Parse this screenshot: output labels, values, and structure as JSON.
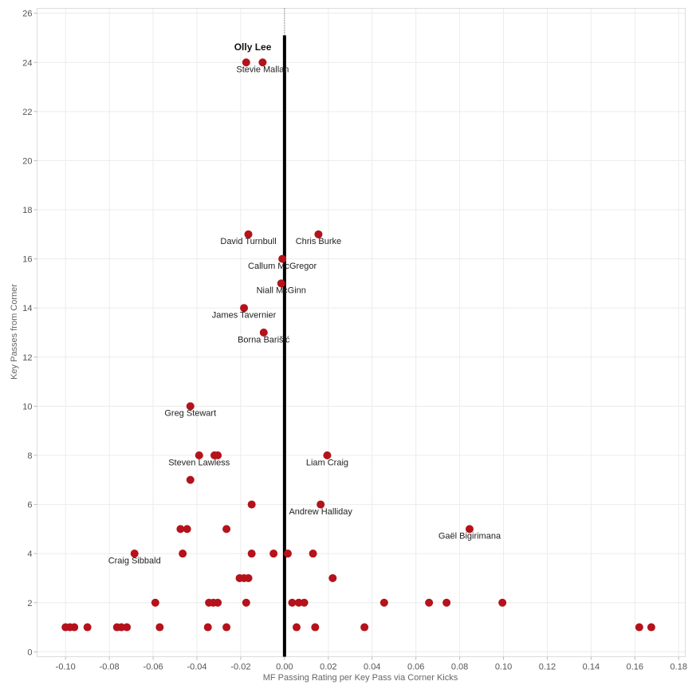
{
  "chart_data": {
    "type": "scatter",
    "title": "",
    "xlabel": "MF Passing Rating per Key Pass via Corner Kicks",
    "ylabel": "Key Passes from Corner",
    "xlim": [
      -0.113,
      0.183
    ],
    "ylim": [
      -0.2,
      26.2
    ],
    "x_ticks": [
      -0.1,
      -0.08,
      -0.06,
      -0.04,
      -0.02,
      0.0,
      0.02,
      0.04,
      0.06,
      0.08,
      0.1,
      0.12,
      0.14,
      0.16,
      0.18
    ],
    "x_tick_labels": [
      "-0.10",
      "-0.08",
      "-0.06",
      "-0.04",
      "-0.02",
      "0.00",
      "0.02",
      "0.04",
      "0.06",
      "0.08",
      "0.10",
      "0.12",
      "0.14",
      "0.16",
      "0.18"
    ],
    "y_ticks": [
      0,
      2,
      4,
      6,
      8,
      10,
      12,
      14,
      16,
      18,
      20,
      22,
      24,
      26
    ],
    "y_tick_labels": [
      "0",
      "2",
      "4",
      "6",
      "8",
      "10",
      "12",
      "14",
      "16",
      "18",
      "20",
      "22",
      "24",
      "26"
    ],
    "grid": true,
    "marker_color": "#b5121b",
    "reference_line": {
      "x": 0.0,
      "y_to": 25.1,
      "color": "#000000"
    },
    "points": [
      {
        "x": -0.0175,
        "y": 24
      },
      {
        "x": -0.01,
        "y": 24
      },
      {
        "x": -0.0165,
        "y": 17
      },
      {
        "x": 0.0155,
        "y": 17
      },
      {
        "x": -0.001,
        "y": 16
      },
      {
        "x": -0.0015,
        "y": 15
      },
      {
        "x": -0.0185,
        "y": 14
      },
      {
        "x": -0.0095,
        "y": 13
      },
      {
        "x": -0.043,
        "y": 10
      },
      {
        "x": -0.039,
        "y": 8
      },
      {
        "x": -0.032,
        "y": 8
      },
      {
        "x": -0.0305,
        "y": 8
      },
      {
        "x": 0.0195,
        "y": 8
      },
      {
        "x": -0.043,
        "y": 7
      },
      {
        "x": -0.015,
        "y": 6
      },
      {
        "x": 0.0165,
        "y": 6
      },
      {
        "x": -0.0475,
        "y": 5
      },
      {
        "x": -0.0445,
        "y": 5
      },
      {
        "x": -0.0265,
        "y": 5
      },
      {
        "x": 0.0845,
        "y": 5
      },
      {
        "x": -0.0685,
        "y": 4
      },
      {
        "x": -0.0465,
        "y": 4
      },
      {
        "x": -0.015,
        "y": 4
      },
      {
        "x": -0.005,
        "y": 4
      },
      {
        "x": 0.0015,
        "y": 4
      },
      {
        "x": 0.013,
        "y": 4
      },
      {
        "x": -0.0205,
        "y": 3
      },
      {
        "x": -0.0185,
        "y": 3
      },
      {
        "x": -0.0165,
        "y": 3
      },
      {
        "x": 0.022,
        "y": 3
      },
      {
        "x": -0.059,
        "y": 2
      },
      {
        "x": -0.0345,
        "y": 2
      },
      {
        "x": -0.0325,
        "y": 2
      },
      {
        "x": -0.0305,
        "y": 2
      },
      {
        "x": -0.0175,
        "y": 2
      },
      {
        "x": 0.0035,
        "y": 2
      },
      {
        "x": 0.0065,
        "y": 2
      },
      {
        "x": 0.009,
        "y": 2
      },
      {
        "x": 0.0455,
        "y": 2
      },
      {
        "x": 0.066,
        "y": 2
      },
      {
        "x": 0.074,
        "y": 2
      },
      {
        "x": 0.0995,
        "y": 2
      },
      {
        "x": -0.1,
        "y": 1
      },
      {
        "x": -0.098,
        "y": 1
      },
      {
        "x": -0.096,
        "y": 1
      },
      {
        "x": -0.09,
        "y": 1
      },
      {
        "x": -0.0765,
        "y": 1
      },
      {
        "x": -0.0745,
        "y": 1
      },
      {
        "x": -0.072,
        "y": 1
      },
      {
        "x": -0.057,
        "y": 1
      },
      {
        "x": -0.035,
        "y": 1
      },
      {
        "x": -0.0265,
        "y": 1
      },
      {
        "x": 0.0055,
        "y": 1
      },
      {
        "x": 0.014,
        "y": 1
      },
      {
        "x": 0.0365,
        "y": 1
      },
      {
        "x": 0.162,
        "y": 1
      },
      {
        "x": 0.1675,
        "y": 1
      }
    ],
    "annotations": [
      {
        "text": "Olly Lee",
        "x": -0.0145,
        "y": 24.5,
        "bold": true
      },
      {
        "text": "Stevie Mallan",
        "x": -0.01,
        "y": 23.6,
        "bold": false
      },
      {
        "text": "David Turnbull",
        "x": -0.0165,
        "y": 16.6,
        "bold": false
      },
      {
        "text": "Chris Burke",
        "x": 0.0155,
        "y": 16.6,
        "bold": false
      },
      {
        "text": "Callum McGregor",
        "x": -0.001,
        "y": 15.6,
        "bold": false
      },
      {
        "text": "Niall McGinn",
        "x": -0.0015,
        "y": 14.6,
        "bold": false
      },
      {
        "text": "James Tavernier",
        "x": -0.0185,
        "y": 13.6,
        "bold": false
      },
      {
        "text": "Borna Barišić",
        "x": -0.0095,
        "y": 12.6,
        "bold": false
      },
      {
        "text": "Greg Stewart",
        "x": -0.043,
        "y": 9.6,
        "bold": false
      },
      {
        "text": "Steven Lawless",
        "x": -0.039,
        "y": 7.6,
        "bold": false
      },
      {
        "text": "Liam Craig",
        "x": 0.0195,
        "y": 7.6,
        "bold": false
      },
      {
        "text": "Andrew Halliday",
        "x": 0.0165,
        "y": 5.6,
        "bold": false
      },
      {
        "text": "Gaël Bigirimana",
        "x": 0.0845,
        "y": 4.6,
        "bold": false
      },
      {
        "text": "Craig Sibbald",
        "x": -0.0685,
        "y": 3.6,
        "bold": false
      }
    ]
  }
}
